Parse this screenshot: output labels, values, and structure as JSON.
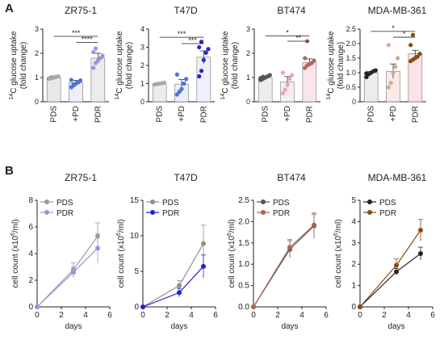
{
  "panels": {
    "a": "A",
    "b": "B"
  },
  "chart_data": [
    {
      "panel": "A",
      "type": "bar",
      "title": "ZR75-1",
      "ylabel_prefix": "14",
      "ylabel_line1": "C glucose uptake",
      "ylabel_line2": "(fold change)",
      "ylim": [
        0,
        3
      ],
      "yticks": [
        0,
        1,
        2,
        3
      ],
      "categories": [
        "PDS",
        "+PD",
        "PDR"
      ],
      "values": [
        1.0,
        0.78,
        1.8
      ],
      "errors": [
        0.05,
        0.1,
        0.2
      ],
      "bar_colors": [
        "#e8e8e8",
        "#efeefa",
        "#ececec"
      ],
      "point_colors": [
        "#a8a8a8",
        "#4b73d8",
        "#a88de6"
      ],
      "points": [
        [
          0.95,
          0.98,
          1.0,
          1.03,
          1.05,
          0.97,
          1.02
        ],
        [
          0.6,
          0.68,
          0.75,
          0.8,
          0.88,
          0.9,
          0.72
        ],
        [
          1.4,
          1.6,
          1.7,
          1.8,
          1.9,
          2.05,
          2.2
        ]
      ],
      "brackets": [
        {
          "from": 0,
          "to": 2,
          "label": "***",
          "y": 2.7
        },
        {
          "from": 1,
          "to": 2,
          "label": "****",
          "y": 2.45
        }
      ]
    },
    {
      "panel": "A",
      "type": "bar",
      "title": "T47D",
      "ylim": [
        0,
        4
      ],
      "yticks": [
        0,
        1,
        2,
        3,
        4
      ],
      "categories": [
        "PDS",
        "+PD",
        "PDR"
      ],
      "values": [
        1.0,
        0.97,
        2.45
      ],
      "errors": [
        0.04,
        0.25,
        0.35
      ],
      "bar_colors": [
        "#ececec",
        "#eceef8",
        "#eef0fb"
      ],
      "point_colors": [
        "#a8a8a8",
        "#4b73d8",
        "#2626d0"
      ],
      "points": [
        [
          0.95,
          0.98,
          1.0,
          1.02,
          1.05
        ],
        [
          0.4,
          0.55,
          0.7,
          1.0,
          1.25,
          1.5
        ],
        [
          1.4,
          1.7,
          2.3,
          2.7,
          2.9,
          3.0,
          3.3
        ]
      ],
      "brackets": [
        {
          "from": 0,
          "to": 2,
          "label": "***",
          "y": 3.55
        },
        {
          "from": 1,
          "to": 2,
          "label": "***",
          "y": 3.2
        }
      ]
    },
    {
      "panel": "A",
      "type": "bar",
      "title": "BT474",
      "ylim": [
        0,
        3
      ],
      "yticks": [
        0,
        1,
        2,
        3
      ],
      "categories": [
        "PDS",
        "+PD",
        "PDR"
      ],
      "values": [
        1.0,
        0.82,
        1.62
      ],
      "errors": [
        0.05,
        0.22,
        0.15
      ],
      "bar_colors": [
        "#ececec",
        "#fbecef",
        "#fbe4ea"
      ],
      "point_colors": [
        "#555555",
        "#e8a8b2",
        "#b06a55"
      ],
      "points": [
        [
          0.9,
          0.95,
          1.0,
          1.05,
          1.1,
          0.98,
          1.03
        ],
        [
          0.35,
          0.5,
          0.7,
          0.95,
          1.1,
          1.2
        ],
        [
          1.4,
          1.5,
          1.55,
          1.6,
          1.7,
          1.8,
          2.5
        ]
      ],
      "brackets": [
        {
          "from": 0,
          "to": 2,
          "label": "*",
          "y": 2.72
        },
        {
          "from": 1,
          "to": 2,
          "label": "**",
          "y": 2.5
        }
      ]
    },
    {
      "panel": "A",
      "type": "bar",
      "title": "MDA-MB-361",
      "ylim": [
        0,
        2.5
      ],
      "yticks": [
        0,
        0.5,
        1,
        1.5,
        2,
        2.5
      ],
      "ytick_labels": [
        "0",
        "0.5",
        "1.0",
        "1.5",
        "2.0",
        "2.5"
      ],
      "categories": [
        "PDS",
        "+PD",
        "PDR"
      ],
      "values": [
        1.0,
        1.05,
        1.65
      ],
      "errors": [
        0.04,
        0.25,
        0.12
      ],
      "bar_colors": [
        "#ececec",
        "#fbeaea",
        "#fbe4e6"
      ],
      "point_colors": [
        "#222222",
        "#d8a890",
        "#8a4a10"
      ],
      "points": [
        [
          0.85,
          0.95,
          1.0,
          1.05,
          1.08,
          0.98
        ],
        [
          0.5,
          0.65,
          1.0,
          1.2,
          1.5,
          1.95
        ],
        [
          1.4,
          1.45,
          1.5,
          1.55,
          1.65,
          1.95,
          2.3
        ]
      ],
      "brackets": [
        {
          "from": 0,
          "to": 2,
          "label": "*",
          "y": 2.42
        },
        {
          "from": 1,
          "to": 2,
          "label": "*",
          "y": 2.22
        }
      ]
    },
    {
      "panel": "B",
      "type": "line",
      "title": "ZR75-1",
      "xlabel": "days",
      "ylabel_prefix": "cell count (x10",
      "ylabel_sup": "6",
      "ylabel_suffix": "/ml)",
      "xlim": [
        0,
        6
      ],
      "xticks": [
        0,
        2,
        4,
        6
      ],
      "ylim": [
        0,
        8
      ],
      "yticks": [
        0,
        2,
        4,
        6,
        8
      ],
      "x": [
        0,
        3,
        5
      ],
      "series": [
        {
          "name": "PDS",
          "color": "#9a9a9a",
          "values": [
            0,
            2.8,
            5.3
          ],
          "errors": [
            0,
            0.5,
            1.0
          ]
        },
        {
          "name": "PDR",
          "color": "#a48ee0",
          "values": [
            0,
            2.6,
            4.4
          ],
          "errors": [
            0,
            0.4,
            1.1
          ]
        }
      ]
    },
    {
      "panel": "B",
      "type": "line",
      "title": "T47D",
      "xlabel": "days",
      "xlim": [
        0,
        6
      ],
      "xticks": [
        0,
        2,
        4,
        6
      ],
      "ylim": [
        0,
        15
      ],
      "yticks": [
        0,
        5,
        10,
        15
      ],
      "x": [
        0,
        3,
        5
      ],
      "series": [
        {
          "name": "PDS",
          "color": "#909090",
          "values": [
            0,
            3.0,
            8.9
          ],
          "errors": [
            0,
            0.7,
            2.6
          ]
        },
        {
          "name": "PDR",
          "color": "#2020d0",
          "values": [
            0,
            2.0,
            5.7
          ],
          "errors": [
            0,
            0.6,
            1.6
          ]
        }
      ]
    },
    {
      "panel": "B",
      "type": "line",
      "title": "BT474",
      "xlabel": "days",
      "xlim": [
        0,
        6
      ],
      "xticks": [
        0,
        2,
        4,
        6
      ],
      "ylim": [
        0,
        2.5
      ],
      "yticks": [
        0,
        0.5,
        1,
        1.5,
        2,
        2.5
      ],
      "ytick_labels": [
        "0.0",
        "0.5",
        "1.0",
        "1.5",
        "2.0",
        "2.5"
      ],
      "x": [
        0,
        3,
        5
      ],
      "series": [
        {
          "name": "PDS",
          "color": "#555555",
          "values": [
            0,
            1.35,
            1.9
          ],
          "errors": [
            0,
            0.2,
            0.3
          ]
        },
        {
          "name": "PDR",
          "color": "#a86a50",
          "values": [
            0,
            1.4,
            1.92
          ],
          "errors": [
            0,
            0.18,
            0.25
          ]
        }
      ]
    },
    {
      "panel": "B",
      "type": "line",
      "title": "MDA-MB-361",
      "xlabel": "days",
      "xlim": [
        0,
        6
      ],
      "xticks": [
        0,
        2,
        4,
        6
      ],
      "ylim": [
        0,
        5
      ],
      "yticks": [
        0,
        1,
        2,
        3,
        4,
        5
      ],
      "x": [
        0,
        3,
        5
      ],
      "series": [
        {
          "name": "PDS",
          "color": "#222222",
          "values": [
            0,
            1.65,
            2.5
          ],
          "errors": [
            0,
            0.15,
            0.3
          ]
        },
        {
          "name": "PDR",
          "color": "#8a4a10",
          "values": [
            0,
            1.95,
            3.6
          ],
          "errors": [
            0,
            0.3,
            0.5
          ]
        }
      ]
    }
  ]
}
